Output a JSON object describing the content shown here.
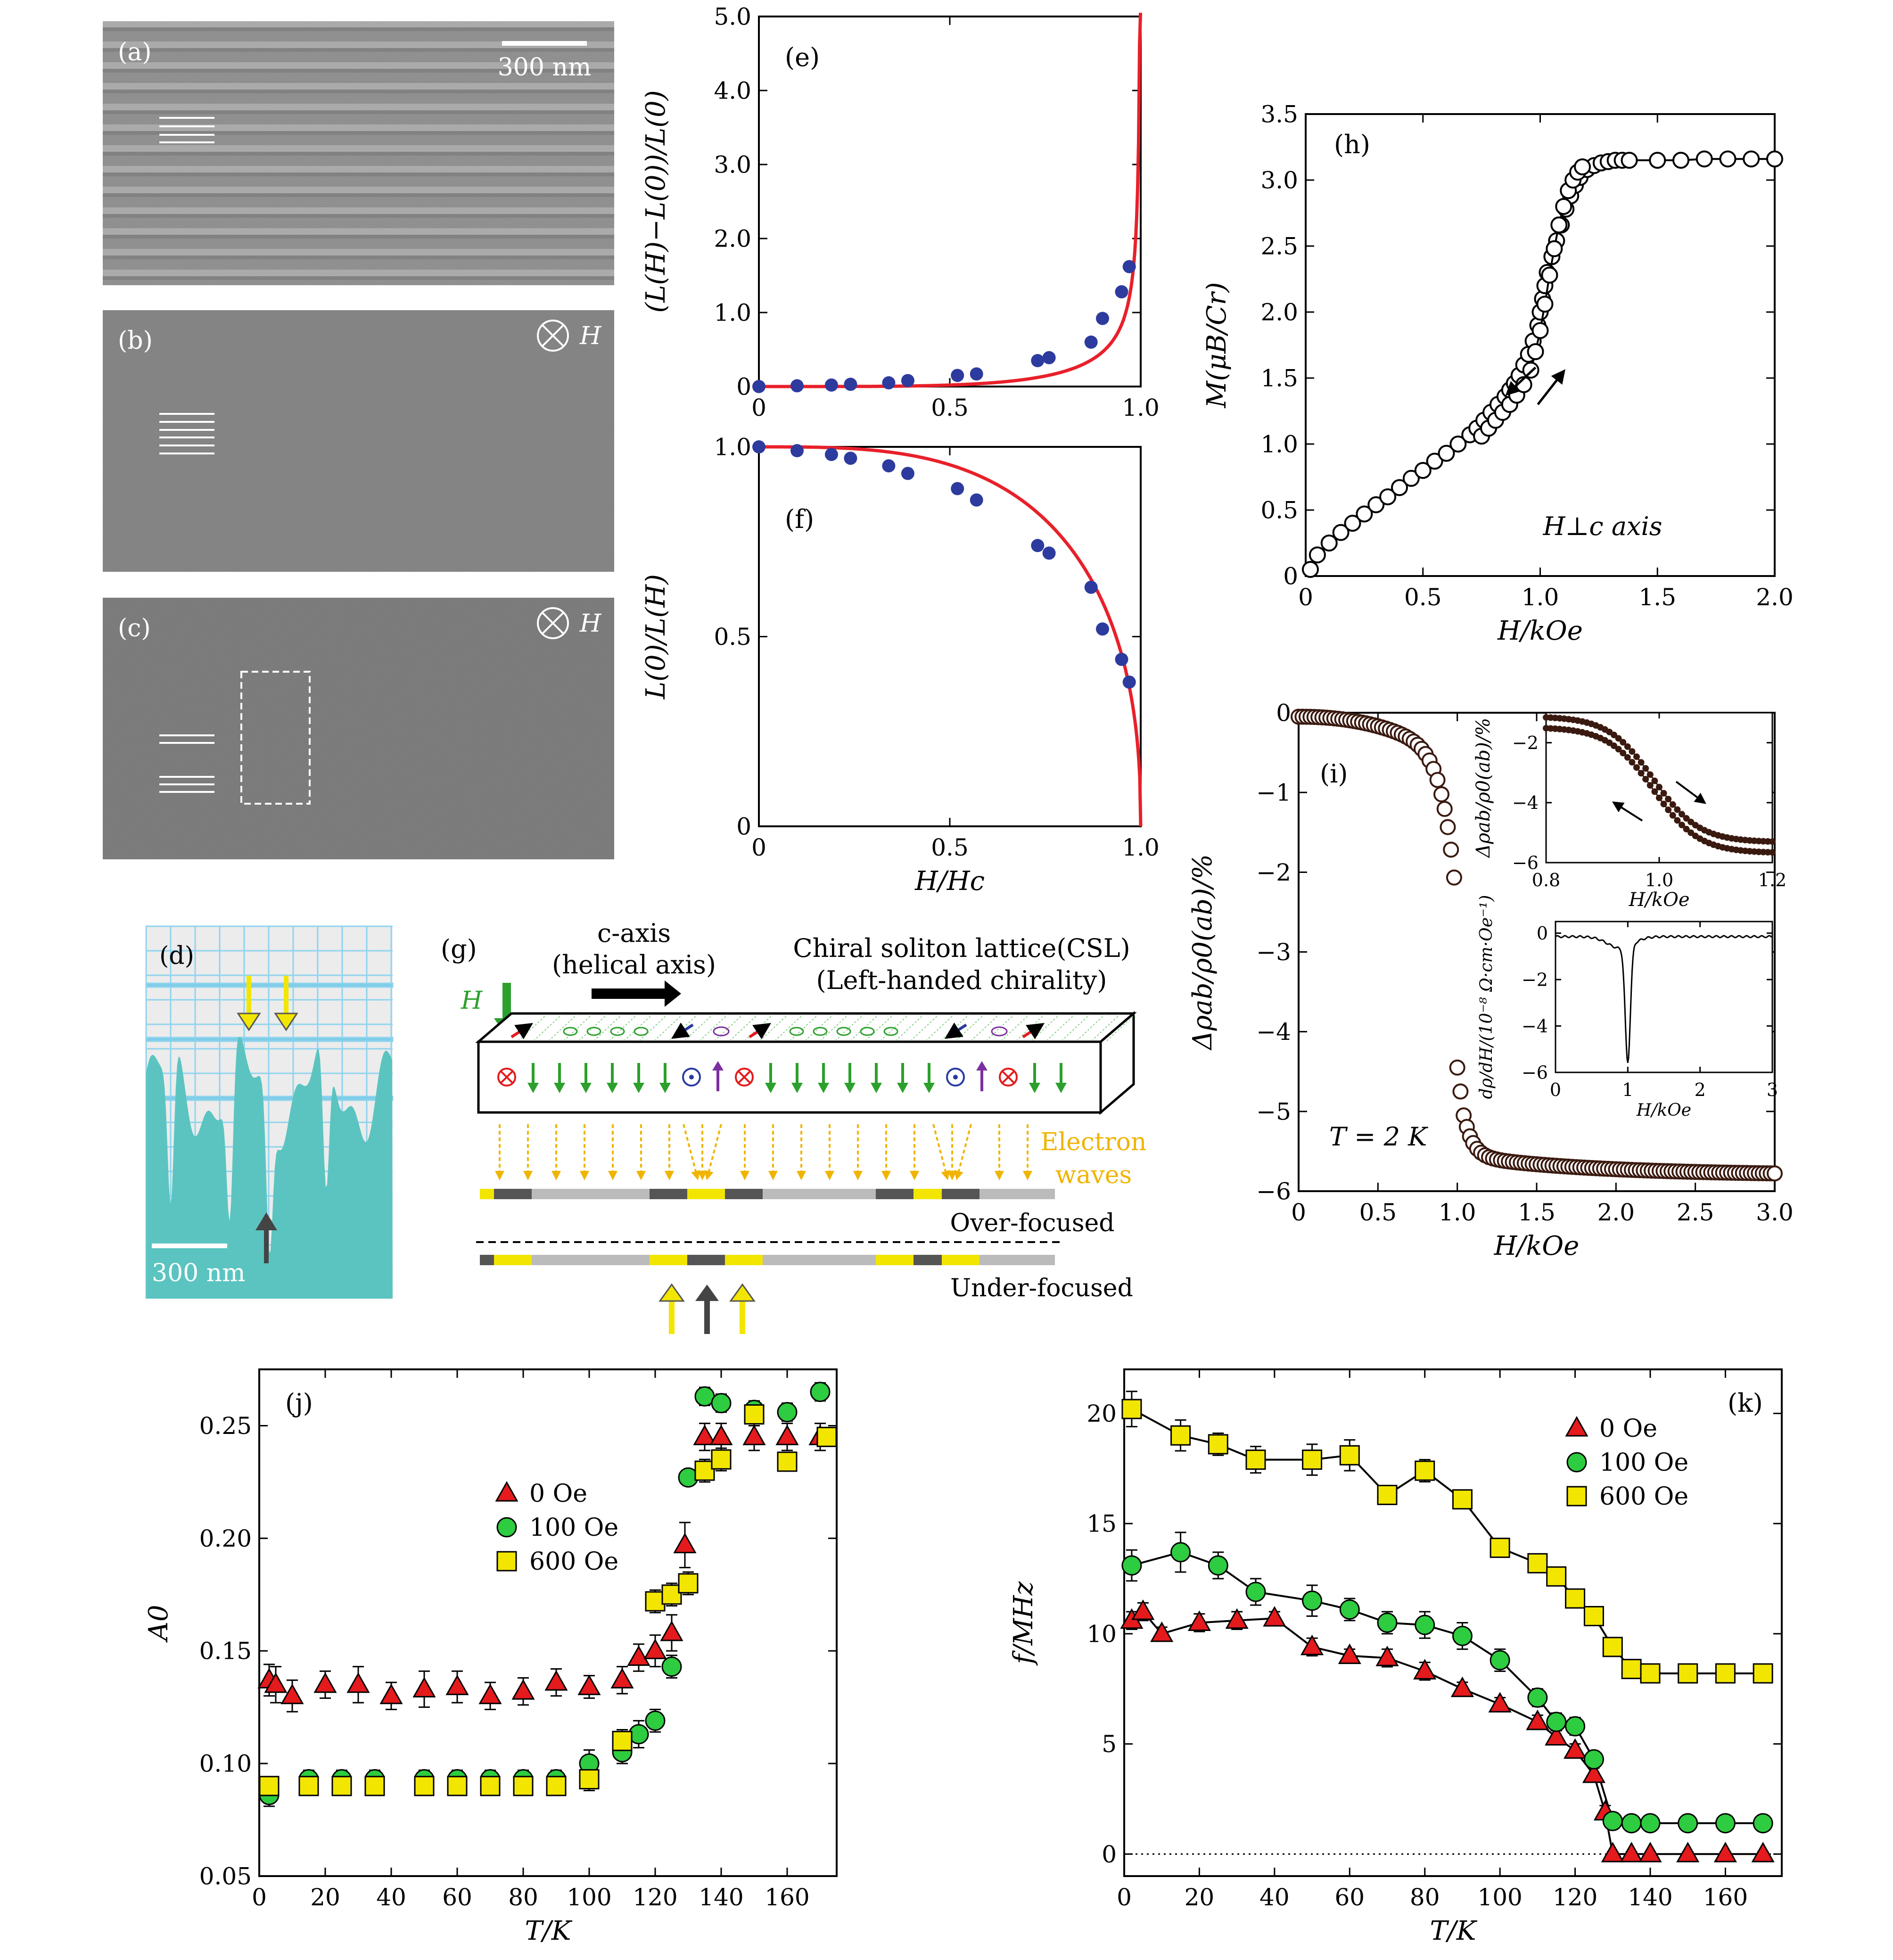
{
  "panels": {
    "a": {
      "label": "(a)",
      "scalebar": "300 nm"
    },
    "b": {
      "label": "(b)",
      "field": "H"
    },
    "c": {
      "label": "(c)",
      "field": "H"
    },
    "d": {
      "label": "(d)",
      "scalebar": "300 nm"
    },
    "e": {
      "label": "(e)"
    },
    "f": {
      "label": "(f)"
    },
    "g": {
      "label": "(g)",
      "axis_title_1": "c-axis",
      "axis_title_2": "(helical axis)",
      "csl_1": "Chiral soliton lattice(CSL)",
      "csl_2": "(Left-handed chirality)",
      "field": "H",
      "waves_1": "Electron",
      "waves_2": "waves",
      "over": "Over-focused",
      "under": "Under-focused"
    },
    "h": {
      "label": "(h)",
      "annotation": "H⊥c axis"
    },
    "i": {
      "label": "(i)",
      "annotation": "T = 2 K"
    },
    "j": {
      "label": "(j)"
    },
    "k": {
      "label": "(k)"
    }
  },
  "colors": {
    "fit": "#e8202a",
    "points": "#2d3b9e",
    "teal": "#5bc4c0",
    "red": "#e41a1c",
    "green": "#2ecc40",
    "yellow": "#f2e600"
  },
  "chart_data": [
    {
      "id": "e",
      "type": "scatter",
      "xlabel": "",
      "ylabel": "(L(H)−L(0))/L(0)",
      "xlim": [
        0,
        1.0
      ],
      "ylim": [
        0,
        5.0
      ],
      "xticks": [
        "0",
        "0.5",
        "1.0"
      ],
      "yticks": [
        "0",
        "1.0",
        "2.0",
        "3.0",
        "4.0",
        "5.0"
      ],
      "points": [
        [
          0,
          0
        ],
        [
          0.1,
          0.01
        ],
        [
          0.19,
          0.02
        ],
        [
          0.24,
          0.03
        ],
        [
          0.34,
          0.05
        ],
        [
          0.39,
          0.08
        ],
        [
          0.52,
          0.15
        ],
        [
          0.57,
          0.17
        ],
        [
          0.73,
          0.35
        ],
        [
          0.76,
          0.39
        ],
        [
          0.87,
          0.6
        ],
        [
          0.9,
          0.92
        ],
        [
          0.95,
          1.28
        ],
        [
          0.97,
          1.62
        ]
      ],
      "fit": "soliton"
    },
    {
      "id": "f",
      "type": "scatter",
      "xlabel": "H/Hc",
      "ylabel": "L(0)/L(H)",
      "xlim": [
        0,
        1.0
      ],
      "ylim": [
        0,
        1.0
      ],
      "xticks": [
        "0",
        "0.5",
        "1.0"
      ],
      "yticks": [
        "0",
        "0.5",
        "1.0"
      ],
      "points": [
        [
          0,
          1.0
        ],
        [
          0.1,
          0.99
        ],
        [
          0.19,
          0.98
        ],
        [
          0.24,
          0.97
        ],
        [
          0.34,
          0.95
        ],
        [
          0.39,
          0.93
        ],
        [
          0.52,
          0.89
        ],
        [
          0.57,
          0.86
        ],
        [
          0.73,
          0.74
        ],
        [
          0.76,
          0.72
        ],
        [
          0.87,
          0.63
        ],
        [
          0.9,
          0.52
        ],
        [
          0.95,
          0.44
        ],
        [
          0.97,
          0.38
        ]
      ],
      "fit": "soliton"
    },
    {
      "id": "h",
      "type": "line",
      "xlabel": "H/kOe",
      "ylabel": "M(μB/Cr)",
      "xlim": [
        0,
        2.0
      ],
      "ylim": [
        0,
        3.5
      ],
      "xticks": [
        "0",
        "0.5",
        "1.0",
        "1.5",
        "2.0"
      ],
      "yticks": [
        "0",
        "0.5",
        "1.0",
        "1.5",
        "2.0",
        "2.5",
        "3.0",
        "3.5"
      ],
      "series": [
        {
          "x": [
            0.02,
            0.05,
            0.1,
            0.15,
            0.2,
            0.25,
            0.3,
            0.35,
            0.4,
            0.45,
            0.5,
            0.55,
            0.6,
            0.65,
            0.7,
            0.73,
            0.76,
            0.79,
            0.82,
            0.85,
            0.87,
            0.89,
            0.91,
            0.93,
            0.95,
            0.97,
            0.99,
            1.0,
            1.01,
            1.02,
            1.03,
            1.05,
            1.07,
            1.09,
            1.11,
            1.13,
            1.15,
            1.17,
            1.2,
            1.23,
            1.26,
            1.29,
            1.32,
            1.35,
            1.38,
            1.5,
            1.6,
            1.7,
            1.8,
            1.9,
            2.0
          ],
          "y": [
            0.05,
            0.16,
            0.25,
            0.33,
            0.4,
            0.47,
            0.54,
            0.6,
            0.67,
            0.74,
            0.8,
            0.87,
            0.93,
            1.0,
            1.07,
            1.12,
            1.18,
            1.24,
            1.3,
            1.36,
            1.41,
            1.46,
            1.52,
            1.6,
            1.68,
            1.78,
            1.9,
            2.0,
            2.1,
            2.2,
            2.3,
            2.42,
            2.54,
            2.66,
            2.78,
            2.88,
            2.96,
            3.02,
            3.08,
            3.11,
            3.13,
            3.14,
            3.15,
            3.15,
            3.15,
            3.15,
            3.15,
            3.16,
            3.16,
            3.16,
            3.16
          ]
        },
        {
          "x": [
            0.75,
            0.78,
            0.81,
            0.84,
            0.87,
            0.9,
            0.93,
            0.96,
            0.98,
            1.0,
            1.02,
            1.04,
            1.06,
            1.08,
            1.1,
            1.12,
            1.14,
            1.16,
            1.18
          ],
          "y": [
            1.06,
            1.12,
            1.18,
            1.24,
            1.3,
            1.37,
            1.45,
            1.56,
            1.7,
            1.86,
            2.06,
            2.28,
            2.48,
            2.66,
            2.8,
            2.92,
            3.0,
            3.06,
            3.1
          ]
        }
      ]
    },
    {
      "id": "i",
      "type": "scatter",
      "xlabel": "H/kOe",
      "ylabel": "Δρab/ρ0(ab)/%",
      "xlim": [
        0,
        3.0
      ],
      "ylim": [
        -6,
        0
      ],
      "xticks": [
        "0",
        "0.5",
        "1.0",
        "1.5",
        "2.0",
        "2.5",
        "3.0"
      ],
      "yticks": [
        "0",
        "−1",
        "−2",
        "−3",
        "−4",
        "−5",
        "−6"
      ],
      "model": "magnetoresistance"
    },
    {
      "id": "i_inset1",
      "type": "line",
      "xlabel": "H/kOe",
      "ylabel": "Δρab/ρ0(ab)/%",
      "xlim": [
        0.8,
        1.2
      ],
      "ylim": [
        -6,
        -1
      ],
      "xticks": [
        "0.8",
        "1.0",
        "1.2"
      ],
      "yticks": [
        "−2",
        "−4",
        "−6"
      ]
    },
    {
      "id": "i_inset2",
      "type": "line",
      "xlabel": "H/kOe",
      "ylabel": "dρ/dH/(10⁻⁸ Ω·cm·Oe⁻¹)",
      "xlim": [
        0,
        3
      ],
      "ylim": [
        -6,
        0.5
      ],
      "xticks": [
        "0",
        "1",
        "2",
        "3"
      ],
      "yticks": [
        "0",
        "−2",
        "−4",
        "−6"
      ]
    },
    {
      "id": "j",
      "type": "scatter",
      "xlabel": "T/K",
      "ylabel": "A0",
      "xlim": [
        0,
        175
      ],
      "ylim": [
        0.05,
        0.275
      ],
      "xticks": [
        "0",
        "20",
        "40",
        "60",
        "80",
        "100",
        "120",
        "140",
        "160"
      ],
      "yticks": [
        "0.05",
        "0.10",
        "0.15",
        "0.20",
        "0.25"
      ],
      "series": [
        {
          "name": "0 Oe",
          "marker": "triangle",
          "x": [
            3,
            5,
            10,
            20,
            30,
            40,
            50,
            60,
            70,
            80,
            90,
            100,
            110,
            115,
            120,
            125,
            129,
            135,
            140,
            150,
            160,
            170
          ],
          "y": [
            0.137,
            0.135,
            0.13,
            0.135,
            0.135,
            0.13,
            0.133,
            0.134,
            0.13,
            0.132,
            0.136,
            0.134,
            0.137,
            0.147,
            0.15,
            0.158,
            0.197,
            0.245,
            0.245,
            0.245,
            0.245,
            0.245
          ],
          "err": [
            0.007,
            0.008,
            0.007,
            0.006,
            0.008,
            0.006,
            0.008,
            0.007,
            0.006,
            0.006,
            0.006,
            0.005,
            0.006,
            0.006,
            0.007,
            0.008,
            0.01,
            0.006,
            0.006,
            0.006,
            0.006,
            0.006
          ]
        },
        {
          "name": "100 Oe",
          "marker": "circle",
          "x": [
            3,
            15,
            25,
            35,
            50,
            60,
            70,
            80,
            90,
            100,
            110,
            115,
            120,
            125,
            130,
            135,
            140,
            150,
            160,
            170
          ],
          "y": [
            0.086,
            0.093,
            0.093,
            0.093,
            0.093,
            0.093,
            0.093,
            0.093,
            0.093,
            0.1,
            0.105,
            0.113,
            0.119,
            0.143,
            0.227,
            0.263,
            0.26,
            0.257,
            0.256,
            0.265
          ],
          "err": [
            0.005,
            0.004,
            0.004,
            0.004,
            0.004,
            0.004,
            0.004,
            0.004,
            0.004,
            0.006,
            0.005,
            0.006,
            0.005,
            0.005,
            0.003,
            0.004,
            0.004,
            0.004,
            0.004,
            0.004
          ]
        },
        {
          "name": "600 Oe",
          "marker": "square",
          "x": [
            3,
            15,
            25,
            35,
            50,
            60,
            70,
            80,
            90,
            100,
            110,
            120,
            125,
            130,
            135,
            140,
            150,
            160,
            172
          ],
          "y": [
            0.09,
            0.09,
            0.09,
            0.09,
            0.09,
            0.09,
            0.09,
            0.09,
            0.09,
            0.093,
            0.11,
            0.172,
            0.175,
            0.18,
            0.23,
            0.235,
            0.255,
            0.234,
            0.245
          ],
          "err": [
            0.004,
            0.004,
            0.004,
            0.004,
            0.004,
            0.004,
            0.004,
            0.004,
            0.004,
            0.005,
            0.005,
            0.005,
            0.005,
            0.005,
            0.005,
            0.005,
            0.005,
            0.004,
            0.004
          ]
        }
      ]
    },
    {
      "id": "k",
      "type": "scatter",
      "xlabel": "T/K",
      "ylabel": "f/MHz",
      "xlim": [
        0,
        175
      ],
      "ylim": [
        -1,
        22
      ],
      "xticks": [
        "0",
        "20",
        "40",
        "60",
        "80",
        "100",
        "120",
        "140",
        "160"
      ],
      "yticks": [
        "0",
        "5",
        "10",
        "15",
        "20"
      ],
      "series": [
        {
          "name": "0 Oe",
          "marker": "triangle",
          "x": [
            2,
            5,
            10,
            20,
            30,
            40,
            50,
            60,
            70,
            80,
            90,
            100,
            110,
            115,
            120,
            125,
            128,
            130,
            135,
            140,
            150,
            160,
            170
          ],
          "y": [
            10.6,
            11.0,
            10.0,
            10.5,
            10.6,
            10.7,
            9.4,
            9.0,
            8.9,
            8.3,
            7.5,
            6.8,
            6.0,
            5.3,
            4.7,
            3.6,
            1.9,
            0,
            0,
            0,
            0,
            0,
            0
          ],
          "err": [
            0.4,
            0.4,
            0.3,
            0.4,
            0.4,
            0.3,
            0.4,
            0.3,
            0.4,
            0.4,
            0.3,
            0.3,
            0.3,
            0.3,
            0.3,
            0.3,
            0.3,
            0.1,
            0.1,
            0.1,
            0.1,
            0.1,
            0.1
          ]
        },
        {
          "name": "100 Oe",
          "marker": "circle",
          "x": [
            2,
            15,
            25,
            35,
            50,
            60,
            70,
            80,
            90,
            100,
            110,
            115,
            120,
            125,
            130,
            135,
            140,
            150,
            160,
            170
          ],
          "y": [
            13.1,
            13.7,
            13.1,
            11.9,
            11.5,
            11.1,
            10.5,
            10.4,
            9.9,
            8.8,
            7.1,
            6.0,
            5.8,
            4.3,
            1.5,
            1.4,
            1.4,
            1.4,
            1.4,
            1.4
          ],
          "err": [
            0.7,
            0.9,
            0.6,
            0.6,
            0.7,
            0.5,
            0.5,
            0.6,
            0.6,
            0.5,
            0.4,
            0.4,
            0.4,
            0.3,
            0.2,
            0.2,
            0.2,
            0.2,
            0.2,
            0.2
          ]
        },
        {
          "name": "600 Oe",
          "marker": "square",
          "x": [
            2,
            15,
            25,
            35,
            50,
            60,
            70,
            80,
            90,
            100,
            110,
            115,
            120,
            125,
            130,
            135,
            140,
            150,
            160,
            170
          ],
          "y": [
            20.2,
            19.0,
            18.6,
            17.9,
            17.9,
            18.1,
            16.3,
            17.4,
            16.1,
            13.9,
            13.2,
            12.6,
            11.6,
            10.8,
            9.4,
            8.4,
            8.2,
            8.2,
            8.2,
            8.2
          ],
          "err": [
            0.8,
            0.7,
            0.5,
            0.6,
            0.7,
            0.7,
            0.3,
            0.5,
            0.4,
            0.3,
            0.3,
            0.3,
            0.3,
            0.3,
            0.3,
            0.3,
            0.2,
            0.2,
            0.2,
            0.2
          ]
        }
      ]
    }
  ]
}
